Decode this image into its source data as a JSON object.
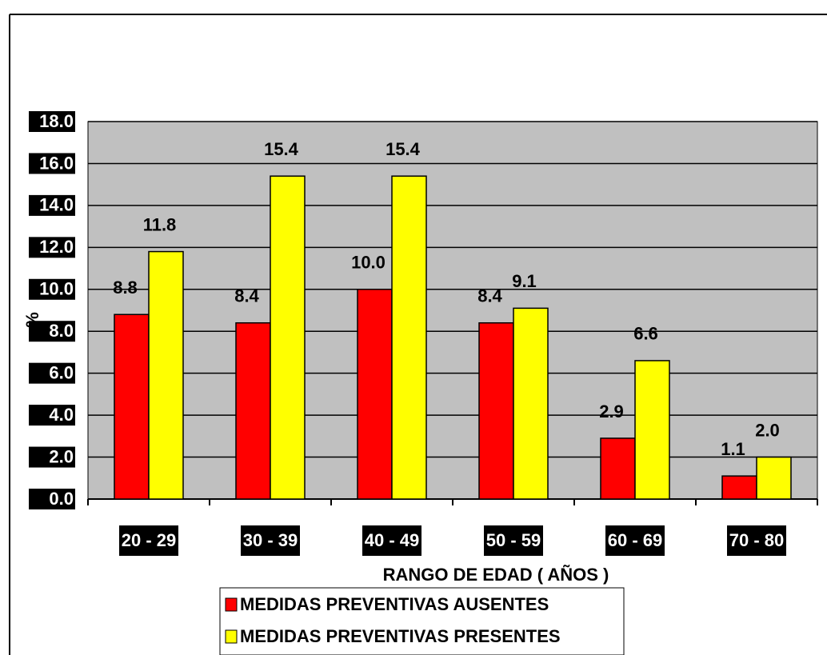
{
  "chart_data": {
    "type": "bar",
    "categories": [
      "20 - 29",
      "30 - 39",
      "40 - 49",
      "50 - 59",
      "60 - 69",
      "70 - 80"
    ],
    "series": [
      {
        "name": "MEDIDAS PREVENTIVAS AUSENTES",
        "color": "#ff0000",
        "values": [
          8.8,
          8.4,
          10.0,
          8.4,
          2.9,
          1.1
        ],
        "value_labels": [
          "8.8",
          "8.4",
          "10.0",
          "8.4",
          "2.9",
          "1.1"
        ]
      },
      {
        "name": "MEDIDAS PREVENTIVAS PRESENTES",
        "color": "#ffff00",
        "values": [
          11.8,
          15.4,
          15.4,
          9.1,
          6.6,
          2.0
        ],
        "value_labels": [
          "11.8",
          "15.4",
          "15.4",
          "9.1",
          "6.6",
          "2.0"
        ]
      }
    ],
    "x_label": "RANGO DE EDAD ( AÑOS )",
    "y_label": "%",
    "ylim": [
      0,
      18
    ],
    "yticks": [
      {
        "value": 0,
        "label": "0.0"
      },
      {
        "value": 2,
        "label": "2.0"
      },
      {
        "value": 4,
        "label": "4.0"
      },
      {
        "value": 6,
        "label": "6.0"
      },
      {
        "value": 8,
        "label": "8.0"
      },
      {
        "value": 10,
        "label": "10.0"
      },
      {
        "value": 12,
        "label": "12.0"
      },
      {
        "value": 14,
        "label": "14.0"
      },
      {
        "value": 16,
        "label": "16.0"
      },
      {
        "value": 18,
        "label": "18.0"
      }
    ],
    "grid": true,
    "plot_background": "#c0c0c0"
  }
}
